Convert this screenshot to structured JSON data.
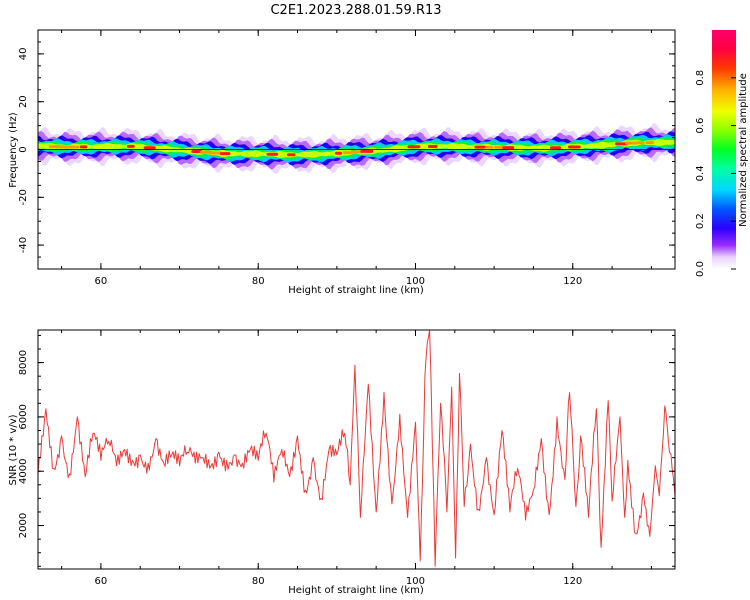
{
  "figure_title": "C2E1.2023.288.01.59.R13",
  "chart_data": [
    {
      "type": "heatmap",
      "title": "",
      "xlabel": "Height of straight line (km)",
      "ylabel": "Frequency (Hz)",
      "xlim": [
        52,
        133
      ],
      "ylim": [
        -50,
        50
      ],
      "x_ticks": [
        60,
        80,
        100,
        120
      ],
      "y_ticks": [
        -40,
        -20,
        0,
        20,
        40
      ],
      "colorbar": {
        "label": "Normalized spectral amplitude",
        "range": [
          0.0,
          1.0
        ],
        "ticks": [
          0.0,
          0.2,
          0.4,
          0.6,
          0.8
        ],
        "colormap": "gist_ncar-like (white→violet→blue→cyan→green→yellow→orange→red→magenta)"
      },
      "ridge_center_hz": {
        "x": [
          52,
          56,
          60,
          64,
          68,
          72,
          76,
          80,
          84,
          88,
          92,
          96,
          100,
          104,
          108,
          112,
          116,
          120,
          124,
          128,
          133
        ],
        "y": [
          1.5,
          1.0,
          1.2,
          1.3,
          0.3,
          -0.8,
          -1.8,
          -1.8,
          -2.2,
          -2.0,
          -1.2,
          -0.3,
          1.2,
          1.3,
          1.0,
          0.8,
          0.5,
          1.0,
          1.8,
          2.8,
          3.0
        ]
      },
      "ridge_halfwidth_hz": 6,
      "line_center_hz": 0
    },
    {
      "type": "line",
      "title": "",
      "xlabel": "Height of straight line (km)",
      "ylabel": "SNR (10 * v/v)",
      "xlim": [
        52,
        133
      ],
      "ylim": [
        400,
        9200
      ],
      "x_ticks": [
        60,
        80,
        100,
        120
      ],
      "y_ticks": [
        2000,
        4000,
        6000,
        8000
      ],
      "series": [
        {
          "color": "#e83a3a",
          "x": [
            52,
            53,
            54,
            55,
            56,
            57,
            58,
            59,
            60,
            61,
            62,
            63,
            64,
            65,
            66,
            67,
            68,
            69,
            70,
            71,
            72,
            73,
            74,
            75,
            76,
            77,
            78,
            79,
            80,
            81,
            82,
            83,
            84,
            85,
            86,
            87,
            88,
            89,
            90,
            91,
            91.7,
            92.3,
            93,
            94,
            95,
            96,
            97,
            98,
            99,
            100,
            100.6,
            101.2,
            101.8,
            102.5,
            103.2,
            104,
            104.6,
            105.1,
            105.6,
            106.2,
            107,
            108,
            109,
            110,
            111,
            112,
            113,
            114,
            115,
            116,
            117,
            118,
            119,
            119.6,
            120.4,
            121,
            122,
            123,
            123.6,
            124.5,
            125,
            126,
            126.6,
            127,
            128,
            129,
            129.8,
            130.5,
            131,
            131.7,
            132.3,
            133
          ],
          "y": [
            3900,
            6300,
            4100,
            5300,
            3900,
            6000,
            3800,
            5400,
            4400,
            5100,
            4200,
            4800,
            4400,
            4600,
            4300,
            5200,
            4300,
            4600,
            4200,
            4700,
            4300,
            4500,
            4200,
            4700,
            4400,
            4600,
            4300,
            4800,
            4400,
            5400,
            3600,
            4800,
            3800,
            5300,
            3300,
            4500,
            3000,
            4800,
            4600,
            5400,
            3500,
            7900,
            2300,
            7200,
            2500,
            6900,
            2800,
            6100,
            2300,
            5800,
            700,
            7500,
            9200,
            500,
            6500,
            2500,
            7100,
            800,
            7600,
            2700,
            5000,
            2600,
            4500,
            2400,
            5500,
            2500,
            4100,
            2200,
            3300,
            5200,
            2400,
            6000,
            3700,
            6900,
            2700,
            5300,
            2300,
            6300,
            1200,
            6600,
            2900,
            6000,
            2300,
            4400,
            1700,
            3200,
            1600,
            4200,
            3100,
            6400,
            4700,
            3100
          ]
        }
      ]
    }
  ]
}
